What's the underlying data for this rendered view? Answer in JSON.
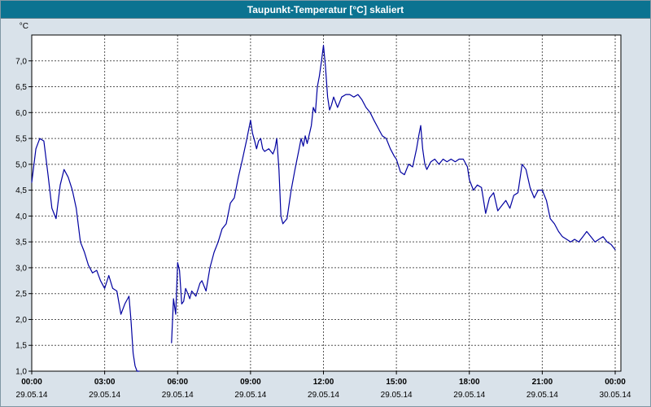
{
  "colors": {
    "titlebar": "#0b7391",
    "title_text": "#ffffff",
    "background": "#d9e2ea",
    "plot_background": "#ffffff",
    "grid": "#555555",
    "frame": "#000000",
    "line": "#0000a0"
  },
  "chart_data": {
    "type": "line",
    "title": "Taupunkt-Temperatur [°C] skaliert",
    "unit": "°C",
    "ylim": [
      1.0,
      7.5
    ],
    "ytick_values": [
      1.0,
      1.5,
      2.0,
      2.5,
      3.0,
      3.5,
      4.0,
      4.5,
      5.0,
      5.5,
      6.0,
      6.5,
      7.0
    ],
    "ytick_labels": [
      "1,0",
      "1,5",
      "2,0",
      "2,5",
      "3,0",
      "3,5",
      "4,0",
      "4,5",
      "5,0",
      "5,5",
      "6,0",
      "6,5",
      "7,0"
    ],
    "xlim": [
      0,
      24
    ],
    "xticks": [
      0,
      3,
      6,
      9,
      12,
      15,
      18,
      21,
      24
    ],
    "xtick_times": [
      "00:00",
      "03:00",
      "06:00",
      "09:00",
      "12:00",
      "15:00",
      "18:00",
      "21:00",
      "00:00"
    ],
    "xtick_dates": [
      "29.05.14",
      "29.05.14",
      "29.05.14",
      "29.05.14",
      "29.05.14",
      "29.05.14",
      "29.05.14",
      "29.05.14",
      "30.05.14"
    ],
    "grid": true,
    "legend": "none",
    "series": [
      {
        "name": "Taupunkt-Temperatur",
        "points": [
          [
            0.0,
            4.65
          ],
          [
            0.17,
            5.3
          ],
          [
            0.33,
            5.5
          ],
          [
            0.5,
            5.45
          ],
          [
            0.67,
            4.8
          ],
          [
            0.83,
            4.15
          ],
          [
            1.0,
            3.95
          ],
          [
            1.17,
            4.6
          ],
          [
            1.33,
            4.9
          ],
          [
            1.5,
            4.75
          ],
          [
            1.67,
            4.5
          ],
          [
            1.83,
            4.15
          ],
          [
            2.0,
            3.5
          ],
          [
            2.17,
            3.3
          ],
          [
            2.33,
            3.05
          ],
          [
            2.5,
            2.9
          ],
          [
            2.67,
            2.95
          ],
          [
            2.83,
            2.75
          ],
          [
            3.0,
            2.6
          ],
          [
            3.17,
            2.85
          ],
          [
            3.33,
            2.6
          ],
          [
            3.5,
            2.55
          ],
          [
            3.67,
            2.1
          ],
          [
            3.83,
            2.3
          ],
          [
            4.0,
            2.45
          ],
          [
            4.08,
            2.0
          ],
          [
            4.17,
            1.35
          ],
          [
            4.25,
            1.1
          ],
          [
            4.33,
            1.0
          ],
          [
            4.42,
            1.0
          ],
          null,
          [
            5.75,
            1.55
          ],
          [
            5.83,
            2.4
          ],
          [
            5.92,
            2.1
          ],
          [
            6.0,
            3.1
          ],
          [
            6.08,
            2.95
          ],
          [
            6.17,
            2.3
          ],
          [
            6.25,
            2.35
          ],
          [
            6.33,
            2.6
          ],
          [
            6.42,
            2.5
          ],
          [
            6.5,
            2.4
          ],
          [
            6.58,
            2.55
          ],
          [
            6.75,
            2.45
          ],
          [
            6.92,
            2.7
          ],
          [
            7.0,
            2.75
          ],
          [
            7.17,
            2.55
          ],
          [
            7.33,
            3.0
          ],
          [
            7.5,
            3.3
          ],
          [
            7.67,
            3.5
          ],
          [
            7.83,
            3.75
          ],
          [
            8.0,
            3.85
          ],
          [
            8.17,
            4.25
          ],
          [
            8.33,
            4.35
          ],
          [
            8.5,
            4.75
          ],
          [
            8.67,
            5.1
          ],
          [
            8.83,
            5.45
          ],
          [
            9.0,
            5.85
          ],
          [
            9.08,
            5.6
          ],
          [
            9.17,
            5.45
          ],
          [
            9.25,
            5.3
          ],
          [
            9.33,
            5.45
          ],
          [
            9.42,
            5.5
          ],
          [
            9.5,
            5.3
          ],
          [
            9.58,
            5.25
          ],
          [
            9.75,
            5.3
          ],
          [
            9.92,
            5.2
          ],
          [
            10.0,
            5.3
          ],
          [
            10.08,
            5.5
          ],
          [
            10.17,
            4.9
          ],
          [
            10.25,
            4.0
          ],
          [
            10.33,
            3.85
          ],
          [
            10.5,
            3.95
          ],
          [
            10.67,
            4.5
          ],
          [
            10.83,
            4.9
          ],
          [
            11.0,
            5.3
          ],
          [
            11.08,
            5.5
          ],
          [
            11.17,
            5.35
          ],
          [
            11.25,
            5.55
          ],
          [
            11.33,
            5.4
          ],
          [
            11.5,
            5.75
          ],
          [
            11.58,
            6.1
          ],
          [
            11.67,
            6.0
          ],
          [
            11.75,
            6.5
          ],
          [
            11.83,
            6.7
          ],
          [
            11.92,
            7.0
          ],
          [
            12.0,
            7.3
          ],
          [
            12.08,
            6.9
          ],
          [
            12.17,
            6.3
          ],
          [
            12.25,
            6.05
          ],
          [
            12.33,
            6.15
          ],
          [
            12.42,
            6.3
          ],
          [
            12.5,
            6.2
          ],
          [
            12.58,
            6.1
          ],
          [
            12.75,
            6.3
          ],
          [
            12.92,
            6.35
          ],
          [
            13.08,
            6.35
          ],
          [
            13.25,
            6.3
          ],
          [
            13.42,
            6.35
          ],
          [
            13.58,
            6.25
          ],
          [
            13.75,
            6.1
          ],
          [
            13.92,
            6.0
          ],
          [
            14.08,
            5.85
          ],
          [
            14.25,
            5.7
          ],
          [
            14.42,
            5.55
          ],
          [
            14.58,
            5.5
          ],
          [
            14.75,
            5.3
          ],
          [
            14.92,
            5.15
          ],
          [
            15.0,
            5.1
          ],
          [
            15.17,
            4.85
          ],
          [
            15.33,
            4.8
          ],
          [
            15.5,
            5.0
          ],
          [
            15.67,
            4.95
          ],
          [
            15.83,
            5.3
          ],
          [
            15.92,
            5.55
          ],
          [
            16.0,
            5.75
          ],
          [
            16.08,
            5.3
          ],
          [
            16.17,
            5.0
          ],
          [
            16.25,
            4.9
          ],
          [
            16.42,
            5.05
          ],
          [
            16.58,
            5.1
          ],
          [
            16.75,
            5.0
          ],
          [
            16.92,
            5.1
          ],
          [
            17.08,
            5.05
          ],
          [
            17.25,
            5.1
          ],
          [
            17.42,
            5.05
          ],
          [
            17.58,
            5.1
          ],
          [
            17.75,
            5.1
          ],
          [
            17.92,
            4.95
          ],
          [
            18.0,
            4.7
          ],
          [
            18.17,
            4.5
          ],
          [
            18.33,
            4.6
          ],
          [
            18.5,
            4.55
          ],
          [
            18.67,
            4.05
          ],
          [
            18.83,
            4.35
          ],
          [
            19.0,
            4.45
          ],
          [
            19.17,
            4.1
          ],
          [
            19.33,
            4.2
          ],
          [
            19.5,
            4.3
          ],
          [
            19.67,
            4.15
          ],
          [
            19.83,
            4.4
          ],
          [
            20.0,
            4.45
          ],
          [
            20.17,
            5.0
          ],
          [
            20.33,
            4.9
          ],
          [
            20.5,
            4.55
          ],
          [
            20.67,
            4.35
          ],
          [
            20.83,
            4.5
          ],
          [
            21.0,
            4.5
          ],
          [
            21.17,
            4.3
          ],
          [
            21.33,
            3.95
          ],
          [
            21.5,
            3.85
          ],
          [
            21.67,
            3.7
          ],
          [
            21.83,
            3.6
          ],
          [
            22.0,
            3.55
          ],
          [
            22.17,
            3.5
          ],
          [
            22.33,
            3.55
          ],
          [
            22.5,
            3.5
          ],
          [
            22.67,
            3.6
          ],
          [
            22.83,
            3.7
          ],
          [
            23.0,
            3.6
          ],
          [
            23.17,
            3.5
          ],
          [
            23.33,
            3.55
          ],
          [
            23.5,
            3.6
          ],
          [
            23.67,
            3.5
          ],
          [
            23.83,
            3.45
          ],
          [
            24.0,
            3.35
          ]
        ]
      }
    ]
  }
}
